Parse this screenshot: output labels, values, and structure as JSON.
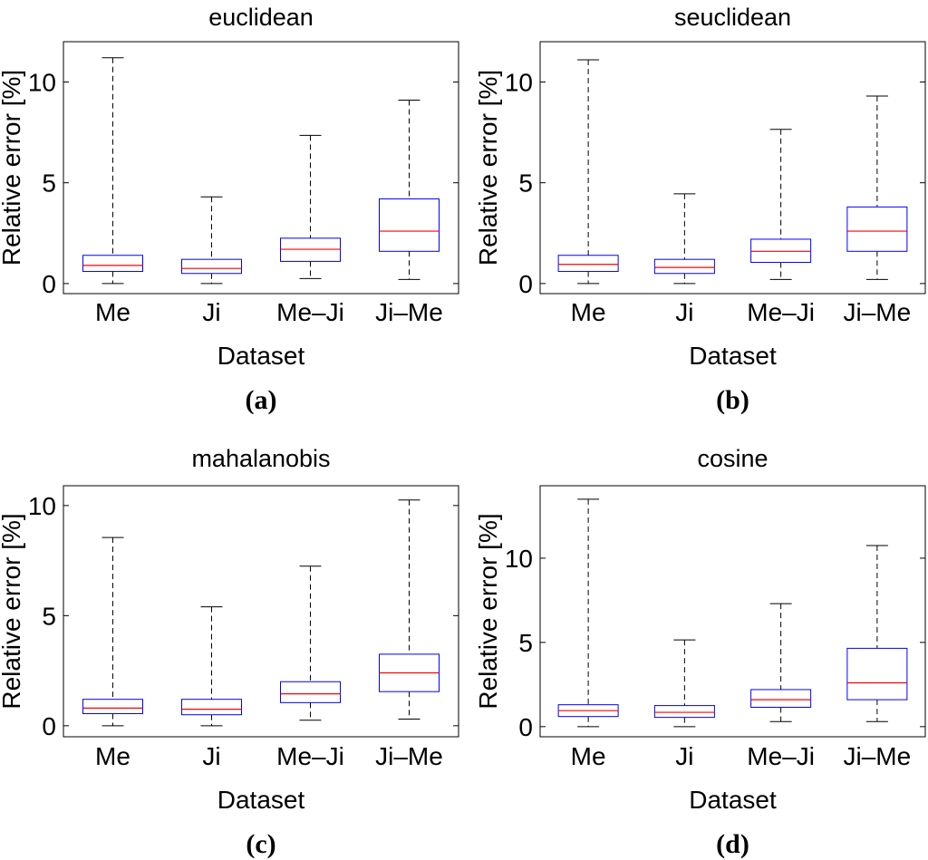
{
  "colors": {
    "box": "#0000ff",
    "median": "#ff0000",
    "whisker": "#000000",
    "axis": "#000000"
  },
  "chart_data": [
    {
      "type": "box",
      "title": "euclidean",
      "xlabel": "Dataset",
      "ylabel": "Relative error [%]",
      "caption": "(a)",
      "categories": [
        "Me",
        "Ji",
        "Me–Ji",
        "Ji–Me"
      ],
      "ylim": [
        -0.5,
        12
      ],
      "yticks": [
        0,
        5,
        10
      ],
      "boxes": [
        {
          "min": 0.0,
          "q1": 0.6,
          "median": 0.9,
          "q3": 1.4,
          "max": 11.2
        },
        {
          "min": 0.0,
          "q1": 0.5,
          "median": 0.75,
          "q3": 1.2,
          "max": 4.3
        },
        {
          "min": 0.25,
          "q1": 1.1,
          "median": 1.7,
          "q3": 2.25,
          "max": 7.35
        },
        {
          "min": 0.2,
          "q1": 1.6,
          "median": 2.6,
          "q3": 4.2,
          "max": 9.1
        }
      ]
    },
    {
      "type": "box",
      "title": "seuclidean",
      "xlabel": "Dataset",
      "ylabel": "Relative error [%]",
      "caption": "(b)",
      "categories": [
        "Me",
        "Ji",
        "Me–Ji",
        "Ji–Me"
      ],
      "ylim": [
        -0.5,
        12
      ],
      "yticks": [
        0,
        5,
        10
      ],
      "boxes": [
        {
          "min": 0.0,
          "q1": 0.6,
          "median": 0.95,
          "q3": 1.4,
          "max": 11.1
        },
        {
          "min": 0.0,
          "q1": 0.5,
          "median": 0.8,
          "q3": 1.2,
          "max": 4.45
        },
        {
          "min": 0.2,
          "q1": 1.05,
          "median": 1.6,
          "q3": 2.2,
          "max": 7.65
        },
        {
          "min": 0.2,
          "q1": 1.6,
          "median": 2.6,
          "q3": 3.8,
          "max": 9.3
        }
      ]
    },
    {
      "type": "box",
      "title": "mahalanobis",
      "xlabel": "Dataset",
      "ylabel": "Relative error [%]",
      "caption": "(c)",
      "categories": [
        "Me",
        "Ji",
        "Me–Ji",
        "Ji–Me"
      ],
      "ylim": [
        -0.5,
        10.9
      ],
      "yticks": [
        0,
        5,
        10
      ],
      "boxes": [
        {
          "min": 0.0,
          "q1": 0.55,
          "median": 0.8,
          "q3": 1.2,
          "max": 8.55
        },
        {
          "min": 0.0,
          "q1": 0.5,
          "median": 0.75,
          "q3": 1.2,
          "max": 5.4
        },
        {
          "min": 0.25,
          "q1": 1.05,
          "median": 1.45,
          "q3": 2.0,
          "max": 7.25
        },
        {
          "min": 0.3,
          "q1": 1.55,
          "median": 2.4,
          "q3": 3.25,
          "max": 10.25
        }
      ]
    },
    {
      "type": "box",
      "title": "cosine",
      "xlabel": "Dataset",
      "ylabel": "Relative error [%]",
      "caption": "(d)",
      "categories": [
        "Me",
        "Ji",
        "Me–Ji",
        "Ji–Me"
      ],
      "ylim": [
        -0.6,
        14.3
      ],
      "yticks": [
        0,
        5,
        10
      ],
      "boxes": [
        {
          "min": 0.0,
          "q1": 0.6,
          "median": 0.95,
          "q3": 1.3,
          "max": 13.5
        },
        {
          "min": 0.0,
          "q1": 0.55,
          "median": 0.85,
          "q3": 1.25,
          "max": 5.15
        },
        {
          "min": 0.3,
          "q1": 1.15,
          "median": 1.6,
          "q3": 2.2,
          "max": 7.3
        },
        {
          "min": 0.3,
          "q1": 1.6,
          "median": 2.6,
          "q3": 4.65,
          "max": 10.75
        }
      ]
    }
  ]
}
